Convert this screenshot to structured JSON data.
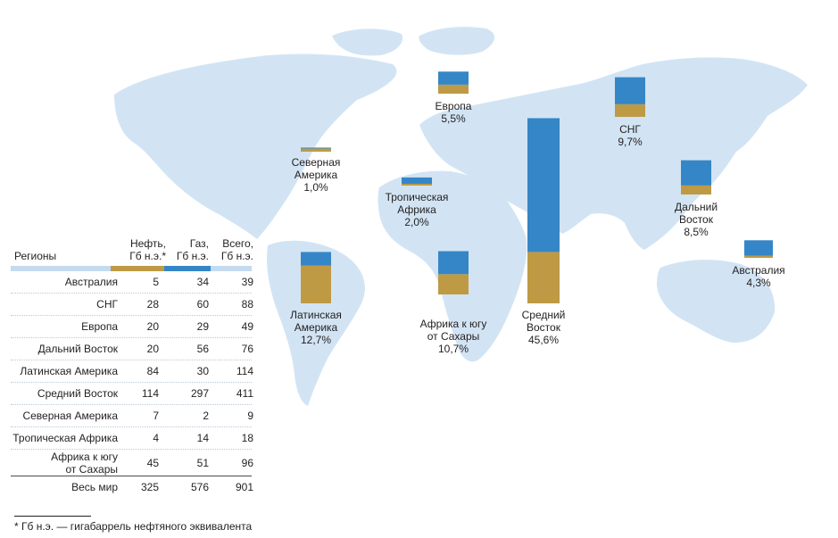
{
  "colors": {
    "oil": "#bf9a45",
    "gas": "#3586c6",
    "land": "#d2e4f4",
    "header_bar_light": "#c4daef"
  },
  "table": {
    "headers": {
      "region": "Регионы",
      "oil_line1": "Нефть,",
      "oil_line2": "Гб н.э.*",
      "gas_line1": "Газ,",
      "gas_line2": "Гб н.э.",
      "total_line1": "Всего,",
      "total_line2": "Гб н.э."
    },
    "rows": [
      {
        "name_line1": "Австралия",
        "name_line2": "",
        "oil": "5",
        "gas": "34",
        "total": "39"
      },
      {
        "name_line1": "СНГ",
        "name_line2": "",
        "oil": "28",
        "gas": "60",
        "total": "88"
      },
      {
        "name_line1": "Европа",
        "name_line2": "",
        "oil": "20",
        "gas": "29",
        "total": "49"
      },
      {
        "name_line1": "Дальний Восток",
        "name_line2": "",
        "oil": "20",
        "gas": "56",
        "total": "76"
      },
      {
        "name_line1": "Латинская Америка",
        "name_line2": "",
        "oil": "84",
        "gas": "30",
        "total": "114"
      },
      {
        "name_line1": "Средний Восток",
        "name_line2": "",
        "oil": "114",
        "gas": "297",
        "total": "411"
      },
      {
        "name_line1": "Северная Америка",
        "name_line2": "",
        "oil": "7",
        "gas": "2",
        "total": "9"
      },
      {
        "name_line1": "Тропическая Африка",
        "name_line2": "",
        "oil": "4",
        "gas": "14",
        "total": "18"
      },
      {
        "name_line1": "Африка к югу",
        "name_line2": "от Сахары",
        "oil": "45",
        "gas": "51",
        "total": "96"
      }
    ],
    "total": {
      "name": "Весь мир",
      "oil": "325",
      "gas": "576",
      "total": "901"
    }
  },
  "footnote": "* Гб н.э. — гигабаррель нефтяного эквивалента",
  "chart_data": {
    "type": "bar",
    "stacked": true,
    "series": [
      {
        "name": "Нефть",
        "values": [
          5,
          28,
          20,
          20,
          84,
          114,
          7,
          4,
          45
        ]
      },
      {
        "name": "Газ",
        "values": [
          34,
          60,
          29,
          56,
          30,
          297,
          2,
          14,
          51
        ]
      }
    ],
    "categories": [
      "Австралия",
      "СНГ",
      "Европа",
      "Дальний Восток",
      "Латинская Америка",
      "Средний Восток",
      "Северная Америка",
      "Тропическая Африка",
      "Африка к югу от Сахары"
    ],
    "map_labels": [
      {
        "line1": "Австралия",
        "line2": "",
        "share": "4,3%"
      },
      {
        "line1": "СНГ",
        "line2": "",
        "share": "9,7%"
      },
      {
        "line1": "Европа",
        "line2": "",
        "share": "5,5%"
      },
      {
        "line1": "Дальний",
        "line2": "Восток",
        "share": "8,5%"
      },
      {
        "line1": "Латинская",
        "line2": "Америка",
        "share": "12,7%"
      },
      {
        "line1": "Средний",
        "line2": "Восток",
        "share": "45,6%"
      },
      {
        "line1": "Северная",
        "line2": "Америка",
        "share": "1,0%"
      },
      {
        "line1": "Тропическая",
        "line2": "Африка",
        "share": "2,0%"
      },
      {
        "line1": "Африка к югу",
        "line2": "от Сахары",
        "share": "10,7%"
      }
    ]
  }
}
